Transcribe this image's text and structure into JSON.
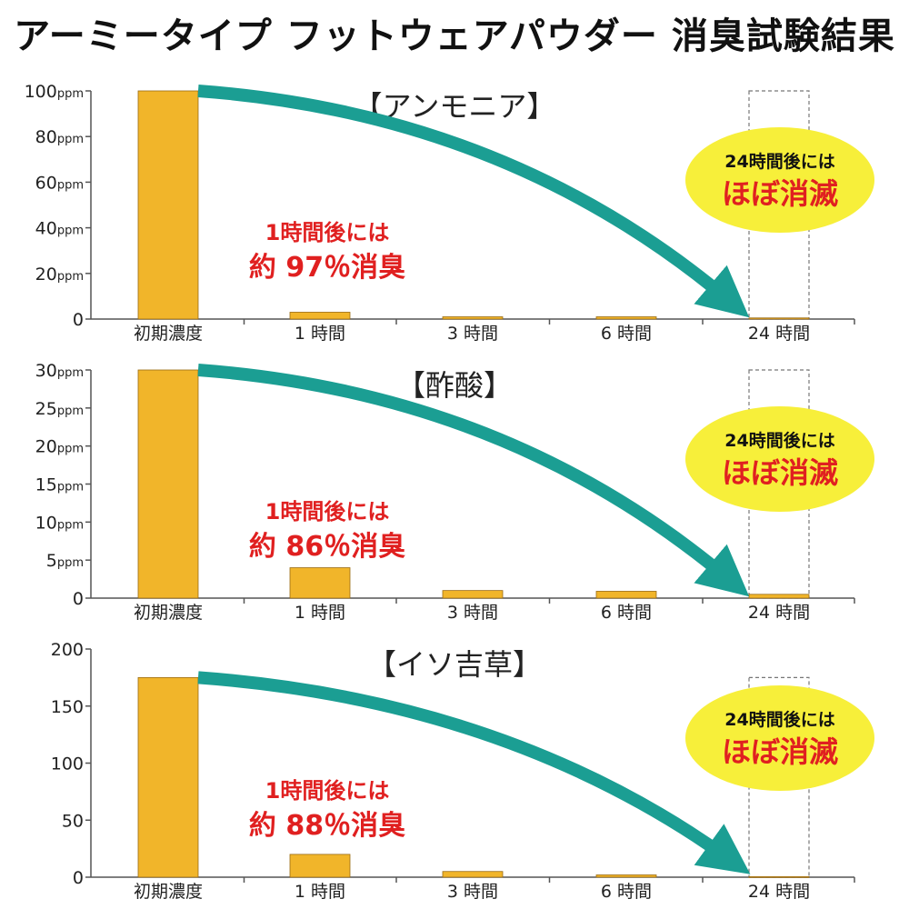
{
  "title": "アーミータイプ フットウェアパウダー 消臭試験結果",
  "colors": {
    "bar": "#f1b52a",
    "bar_stroke": "#9a6b14",
    "arrow": "#1b9e93",
    "accent_red": "#e02020",
    "badge": "#f7ef3a"
  },
  "chart_data": [
    {
      "type": "bar",
      "title": "【アンモニア】",
      "categories": [
        "初期濃度",
        "1 時間",
        "3 時間",
        "6 時間",
        "24 時間"
      ],
      "values": [
        100,
        3,
        1,
        1,
        0.5
      ],
      "ylim": [
        0,
        100
      ],
      "yticks": [
        0,
        20,
        40,
        60,
        80,
        100
      ],
      "ytick_unit": "ppm",
      "annotation": {
        "line1": "1時間後には",
        "line2": "約 97％消臭"
      },
      "badge": {
        "line1": "24時間後には",
        "line2": "ほぼ消滅"
      }
    },
    {
      "type": "bar",
      "title": "【酢酸】",
      "categories": [
        "初期濃度",
        "1 時間",
        "3 時間",
        "6 時間",
        "24 時間"
      ],
      "values": [
        30,
        4,
        1,
        0.9,
        0.5
      ],
      "ylim": [
        0,
        30
      ],
      "yticks": [
        0,
        5,
        10,
        15,
        20,
        25,
        30
      ],
      "ytick_unit": "ppm",
      "annotation": {
        "line1": "1時間後には",
        "line2": "約 86％消臭"
      },
      "badge": {
        "line1": "24時間後には",
        "line2": "ほぼ消滅"
      }
    },
    {
      "type": "bar",
      "title": "【イソ吉草】",
      "categories": [
        "初期濃度",
        "1 時間",
        "3 時間",
        "6 時間",
        "24 時間"
      ],
      "values": [
        175,
        20,
        5,
        2,
        0.5
      ],
      "ylim": [
        0,
        200
      ],
      "yticks": [
        0,
        50,
        100,
        150,
        200
      ],
      "ytick_unit": "",
      "annotation": {
        "line1": "1時間後には",
        "line2": "約 88％消臭"
      },
      "badge": {
        "line1": "24時間後には",
        "line2": "ほぼ消滅"
      }
    }
  ]
}
